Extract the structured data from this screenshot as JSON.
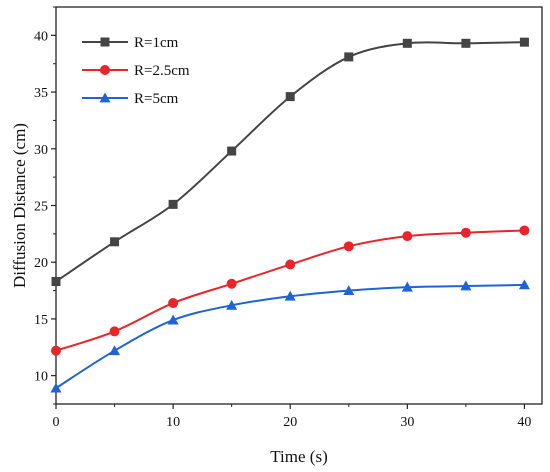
{
  "chart_data": {
    "type": "line",
    "xlabel": "Time (s)",
    "ylabel": "Diffusion Distance (cm)",
    "xlim": [
      0,
      41.5
    ],
    "ylim": [
      7.5,
      42.5
    ],
    "xticks": [
      0,
      10,
      20,
      30,
      40
    ],
    "yticks": [
      10,
      15,
      20,
      25,
      30,
      35,
      40
    ],
    "grid": false,
    "legend": "top-left",
    "x": [
      0,
      5,
      10,
      15,
      20,
      25,
      30,
      35,
      40
    ],
    "series": [
      {
        "name": "R=1cm",
        "color": "#444444",
        "marker": "square",
        "values": [
          18.3,
          21.8,
          25.1,
          29.8,
          34.6,
          38.1,
          39.3,
          39.3,
          39.4
        ]
      },
      {
        "name": "R=2.5cm",
        "color": "#e8252a",
        "marker": "circle",
        "values": [
          12.2,
          13.9,
          16.4,
          18.1,
          19.8,
          21.4,
          22.3,
          22.6,
          22.8
        ]
      },
      {
        "name": "R=5cm",
        "color": "#1f63d4",
        "marker": "triangle",
        "values": [
          8.9,
          12.2,
          14.9,
          16.2,
          17.0,
          17.5,
          17.8,
          17.9,
          18.0
        ]
      }
    ]
  }
}
